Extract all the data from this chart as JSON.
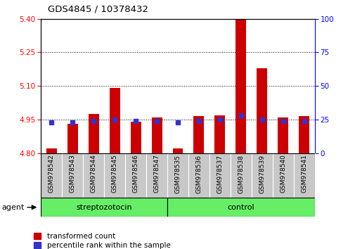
{
  "title": "GDS4845 / 10378432",
  "samples": [
    "GSM978542",
    "GSM978543",
    "GSM978544",
    "GSM978545",
    "GSM978546",
    "GSM978547",
    "GSM978535",
    "GSM978536",
    "GSM978537",
    "GSM978538",
    "GSM978539",
    "GSM978540",
    "GSM978541"
  ],
  "transformed_count": [
    4.82,
    4.93,
    4.975,
    5.09,
    4.94,
    4.96,
    4.82,
    4.965,
    4.97,
    5.4,
    5.18,
    4.96,
    4.965
  ],
  "percentile_rank": [
    23,
    23,
    24,
    25,
    24,
    24,
    23,
    24,
    25,
    28,
    25,
    24,
    24
  ],
  "strep_count": 6,
  "ctrl_count": 7,
  "ylim_left": [
    4.8,
    5.4
  ],
  "ylim_right": [
    0,
    100
  ],
  "yticks_left": [
    4.8,
    4.95,
    5.1,
    5.25,
    5.4
  ],
  "yticks_right": [
    0,
    25,
    50,
    75,
    100
  ],
  "hlines": [
    4.95,
    5.1,
    5.25
  ],
  "bar_color": "#cc0000",
  "dot_color": "#3333cc",
  "green_color": "#66ee66",
  "grey_color": "#c8c8c8",
  "legend_red_label": "transformed count",
  "legend_blue_label": "percentile rank within the sample",
  "agent_label": "agent",
  "streptozotocin_label": "streptozotocin",
  "control_label": "control",
  "baseline": 4.8,
  "bar_width": 0.5
}
